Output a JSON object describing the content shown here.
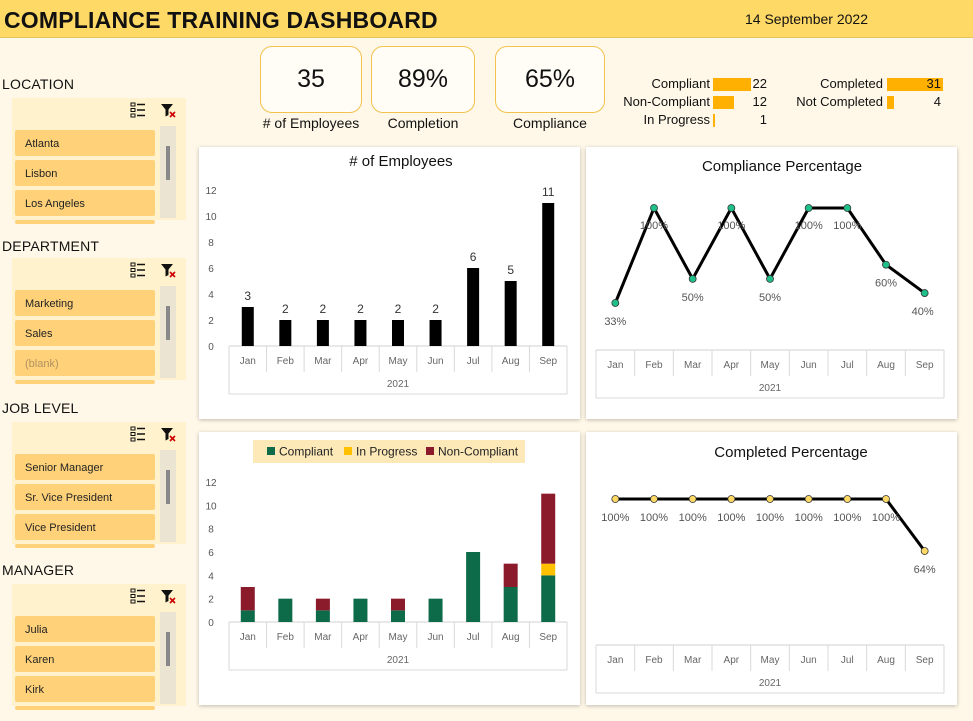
{
  "header": {
    "title": "COMPLIANCE TRAINING DASHBOARD",
    "date": "14 September 2022"
  },
  "slicers": [
    {
      "title": "LOCATION",
      "items": [
        "Atlanta",
        "Lisbon",
        "Los Angeles"
      ]
    },
    {
      "title": "DEPARTMENT",
      "items": [
        "Marketing",
        "Sales",
        "(blank)"
      ]
    },
    {
      "title": "JOB LEVEL",
      "items": [
        "Senior Manager",
        "Sr. Vice President",
        "Vice President"
      ]
    },
    {
      "title": "MANAGER",
      "items": [
        "Julia",
        "Karen",
        "Kirk"
      ]
    }
  ],
  "kpis": [
    {
      "value": "35",
      "label": "# of Employees"
    },
    {
      "value": "89%",
      "label": "Completion"
    },
    {
      "value": "65%",
      "label": "Compliance"
    }
  ],
  "status_compliance": [
    {
      "label": "Compliant",
      "value": "22",
      "fraction": 0.71
    },
    {
      "label": "Non-Compliant",
      "value": "12",
      "fraction": 0.39
    },
    {
      "label": "In Progress",
      "value": "1",
      "fraction": 0.03
    }
  ],
  "status_completion": [
    {
      "label": "Completed",
      "value": "31",
      "fraction": 1.0
    },
    {
      "label": "Not Completed",
      "value": "4",
      "fraction": 0.13
    }
  ],
  "colors": {
    "header_bg": "#ffd966",
    "slicer_item": "#ffd27a",
    "stat_bar": "#ffb000",
    "compliant": "#0e6b4a",
    "in_progress": "#ffc000",
    "non_compliant": "#8b1a2b",
    "line_marker_green": "#1fbf8a",
    "line_marker_yellow": "#ffd966"
  },
  "chart_data": [
    {
      "type": "bar",
      "title": "# of Employees",
      "categories": [
        "Jan",
        "Feb",
        "Mar",
        "Apr",
        "May",
        "Jun",
        "Jul",
        "Aug",
        "Sep"
      ],
      "group_label": "2021",
      "values": [
        3,
        2,
        2,
        2,
        2,
        2,
        6,
        5,
        11
      ],
      "ylim": [
        0,
        12
      ],
      "yticks": [
        "0",
        "2",
        "4",
        "6",
        "8",
        "10",
        "12"
      ],
      "data_labels": [
        "3",
        "2",
        "2",
        "2",
        "2",
        "2",
        "6",
        "5",
        "11"
      ]
    },
    {
      "type": "line",
      "title": "Compliance Percentage",
      "categories": [
        "Jan",
        "Feb",
        "Mar",
        "Apr",
        "May",
        "Jun",
        "Jul",
        "Aug",
        "Sep"
      ],
      "group_label": "2021",
      "values": [
        33,
        100,
        50,
        100,
        50,
        100,
        100,
        60,
        40
      ],
      "data_labels": [
        "33%",
        "100%",
        "50%",
        "100%",
        "50%",
        "100%",
        "100%",
        "60%",
        "40%"
      ]
    },
    {
      "type": "bar",
      "stacked": true,
      "title": "",
      "categories": [
        "Jan",
        "Feb",
        "Mar",
        "Apr",
        "May",
        "Jun",
        "Jul",
        "Aug",
        "Sep"
      ],
      "group_label": "2021",
      "ylim": [
        0,
        12
      ],
      "yticks": [
        "0",
        "2",
        "4",
        "6",
        "8",
        "10",
        "12"
      ],
      "legend": "top",
      "series": [
        {
          "name": "Compliant",
          "values": [
            1,
            2,
            1,
            2,
            1,
            2,
            6,
            3,
            4
          ]
        },
        {
          "name": "In Progress",
          "values": [
            0,
            0,
            0,
            0,
            0,
            0,
            0,
            0,
            1
          ]
        },
        {
          "name": "Non-Compliant",
          "values": [
            2,
            0,
            1,
            0,
            1,
            0,
            0,
            2,
            6
          ]
        }
      ]
    },
    {
      "type": "line",
      "title": "Completed Percentage",
      "categories": [
        "Jan",
        "Feb",
        "Mar",
        "Apr",
        "May",
        "Jun",
        "Jul",
        "Aug",
        "Sep"
      ],
      "group_label": "2021",
      "values": [
        100,
        100,
        100,
        100,
        100,
        100,
        100,
        100,
        64
      ],
      "data_labels": [
        "100%",
        "100%",
        "100%",
        "100%",
        "100%",
        "100%",
        "100%",
        "100%",
        "64%"
      ]
    }
  ]
}
